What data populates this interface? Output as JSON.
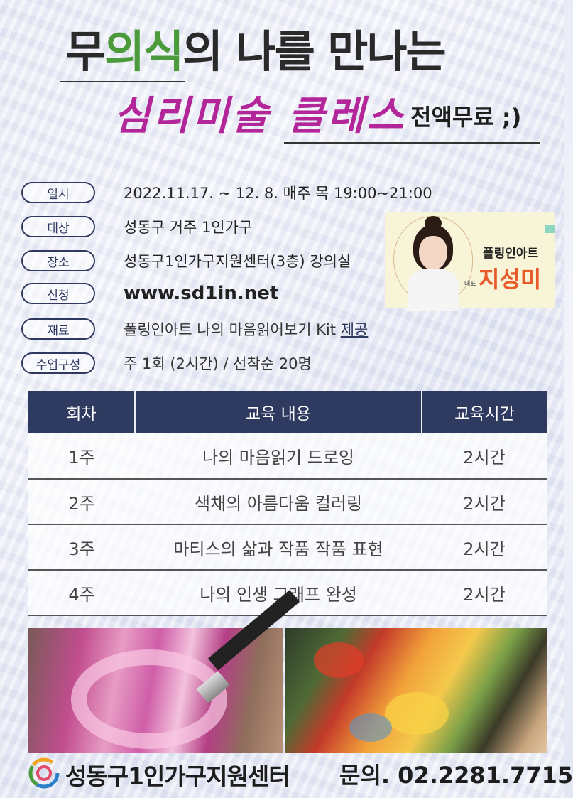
{
  "header": {
    "title_pre": "무",
    "title_green": "의식",
    "title_post": "의 나를 만나는",
    "subtitle": "심리미술 클레스",
    "free_label": "전액무료 ;)"
  },
  "info": [
    {
      "label": "일시",
      "value": "2022.11.17. ~ 12. 8. 매주 목 19:00~21:00"
    },
    {
      "label": "대상",
      "value": "성동구 거주 1인가구"
    },
    {
      "label": "장소",
      "value": "성동구1인가구지원센터(3층) 강의실"
    },
    {
      "label": "신청",
      "value": "www.sd1in.net"
    },
    {
      "label": "재료",
      "value": "폴링인아트 나의 마음읽어보기 Kit",
      "value_emph": "제공"
    },
    {
      "label": "수업구성",
      "value": "주 1회 (2시간)  / 선착순 20명"
    }
  ],
  "instructor": {
    "brand": "폴링인아트",
    "role": "대표",
    "name": "지성미"
  },
  "schedule": {
    "headers": [
      "회차",
      "교육 내용",
      "교육시간"
    ],
    "rows": [
      [
        "1주",
        "나의 마음읽기 드로잉",
        "2시간"
      ],
      [
        "2주",
        "색채의 아름다움 컬러링",
        "2시간"
      ],
      [
        "3주",
        "마티스의 삶과 작품 작품 표현",
        "2시간"
      ],
      [
        "4주",
        "나의 인생 그래프 완성",
        "2시간"
      ]
    ]
  },
  "footer": {
    "org": "성동구1인가구지원센터",
    "contact": "문의. 02.2281.7715"
  },
  "colors": {
    "navy": "#2e3a5f",
    "magenta": "#b2269a",
    "green": "#4b9a3b",
    "name_orange": "#e85b2a"
  }
}
